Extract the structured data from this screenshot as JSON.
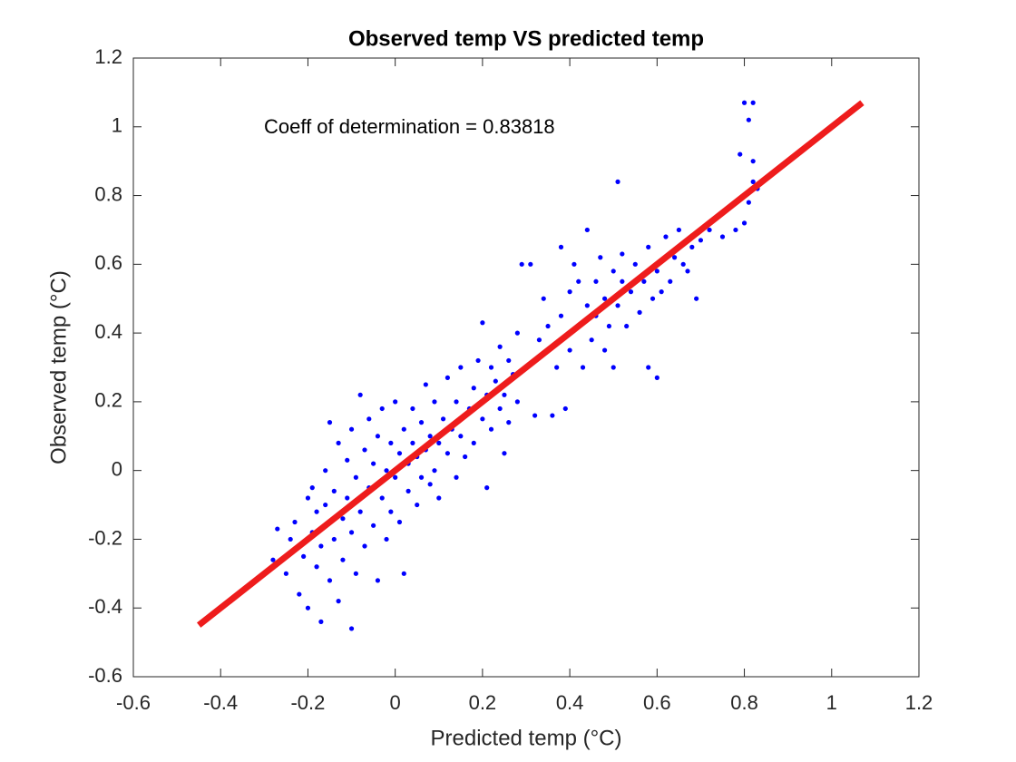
{
  "chart_data": {
    "type": "scatter",
    "title": "Observed temp VS predicted temp",
    "x_label": "Predicted temp (°C)",
    "y_label": "Observed temp (°C)",
    "annotation": "Coeff of determination = 0.83818",
    "xlim": [
      -0.6,
      1.2
    ],
    "ylim": [
      -0.6,
      1.2
    ],
    "xticks": [
      -0.6,
      -0.4,
      -0.2,
      0,
      0.2,
      0.4,
      0.6,
      0.8,
      1,
      1.2
    ],
    "yticks": [
      -0.6,
      -0.4,
      -0.2,
      0,
      0.2,
      0.4,
      0.6,
      0.8,
      1,
      1.2
    ],
    "series": [
      {
        "type": "scatter",
        "color": "#0000ff",
        "x": [
          -0.28,
          -0.27,
          -0.25,
          -0.24,
          -0.23,
          -0.22,
          -0.21,
          -0.2,
          -0.2,
          -0.19,
          -0.19,
          -0.18,
          -0.18,
          -0.17,
          -0.17,
          -0.16,
          -0.16,
          -0.15,
          -0.15,
          -0.14,
          -0.14,
          -0.13,
          -0.13,
          -0.12,
          -0.12,
          -0.11,
          -0.11,
          -0.1,
          -0.1,
          -0.1,
          -0.09,
          -0.09,
          -0.08,
          -0.08,
          -0.07,
          -0.07,
          -0.06,
          -0.06,
          -0.05,
          -0.05,
          -0.04,
          -0.04,
          -0.03,
          -0.03,
          -0.02,
          -0.02,
          -0.01,
          -0.01,
          0,
          0,
          0.01,
          0.01,
          0.02,
          0.02,
          0.03,
          0.03,
          0.04,
          0.04,
          0.05,
          0.05,
          0.06,
          0.06,
          0.07,
          0.07,
          0.08,
          0.08,
          0.09,
          0.09,
          0.1,
          0.1,
          0.11,
          0.12,
          0.12,
          0.13,
          0.14,
          0.14,
          0.15,
          0.15,
          0.16,
          0.17,
          0.18,
          0.18,
          0.19,
          0.2,
          0.2,
          0.21,
          0.21,
          0.22,
          0.22,
          0.23,
          0.24,
          0.24,
          0.25,
          0.25,
          0.26,
          0.26,
          0.27,
          0.28,
          0.28,
          0.29,
          0.3,
          0.31,
          0.32,
          0.33,
          0.34,
          0.35,
          0.36,
          0.37,
          0.38,
          0.38,
          0.39,
          0.4,
          0.4,
          0.41,
          0.42,
          0.42,
          0.43,
          0.44,
          0.44,
          0.45,
          0.46,
          0.46,
          0.47,
          0.48,
          0.48,
          0.49,
          0.5,
          0.5,
          0.51,
          0.51,
          0.52,
          0.52,
          0.53,
          0.54,
          0.55,
          0.56,
          0.57,
          0.58,
          0.58,
          0.59,
          0.6,
          0.6,
          0.61,
          0.62,
          0.63,
          0.64,
          0.65,
          0.66,
          0.67,
          0.68,
          0.69,
          0.7,
          0.72,
          0.75,
          0.78,
          0.79,
          0.8,
          0.8,
          0.81,
          0.81,
          0.82,
          0.82,
          0.82,
          0.83
        ],
        "y": [
          -0.26,
          -0.17,
          -0.3,
          -0.2,
          -0.15,
          -0.36,
          -0.25,
          -0.08,
          -0.4,
          -0.18,
          -0.05,
          -0.28,
          -0.12,
          -0.44,
          -0.22,
          0,
          -0.1,
          -0.32,
          0.14,
          -0.2,
          -0.06,
          0.08,
          -0.38,
          -0.14,
          -0.26,
          0.03,
          -0.08,
          -0.46,
          -0.18,
          0.12,
          -0.02,
          -0.3,
          0.22,
          -0.12,
          0.06,
          -0.22,
          -0.05,
          0.15,
          -0.16,
          0.02,
          -0.32,
          0.1,
          -0.08,
          0.18,
          0,
          -0.2,
          0.08,
          -0.12,
          0.2,
          -0.02,
          0.05,
          -0.15,
          0.12,
          -0.3,
          0.02,
          -0.06,
          0.18,
          0.08,
          -0.1,
          0.04,
          0.14,
          -0.02,
          0.25,
          0.06,
          -0.04,
          0.1,
          0.2,
          0,
          0.08,
          -0.08,
          0.15,
          0.05,
          0.27,
          0.12,
          -0.02,
          0.2,
          0.1,
          0.3,
          0.04,
          0.18,
          0.24,
          0.08,
          0.32,
          0.15,
          0.43,
          0.22,
          -0.05,
          0.3,
          0.12,
          0.26,
          0.18,
          0.36,
          0.22,
          0.05,
          0.32,
          0.14,
          0.28,
          0.4,
          0.2,
          0.6,
          0.3,
          0.6,
          0.16,
          0.38,
          0.5,
          0.42,
          0.16,
          0.3,
          0.45,
          0.65,
          0.18,
          0.52,
          0.35,
          0.6,
          0.42,
          0.55,
          0.3,
          0.48,
          0.7,
          0.38,
          0.55,
          0.45,
          0.62,
          0.35,
          0.5,
          0.42,
          0.58,
          0.3,
          0.84,
          0.48,
          0.55,
          0.63,
          0.42,
          0.52,
          0.6,
          0.46,
          0.55,
          0.3,
          0.65,
          0.5,
          0.27,
          0.58,
          0.52,
          0.68,
          0.55,
          0.62,
          0.7,
          0.6,
          0.58,
          0.65,
          0.5,
          0.67,
          0.7,
          0.68,
          0.7,
          0.92,
          1.07,
          0.72,
          1.02,
          0.78,
          1.07,
          0.9,
          0.84,
          0.82
        ]
      },
      {
        "type": "line",
        "color": "#ee1c1c",
        "x": [
          -0.45,
          1.07
        ],
        "y": [
          -0.45,
          1.07
        ]
      }
    ]
  }
}
